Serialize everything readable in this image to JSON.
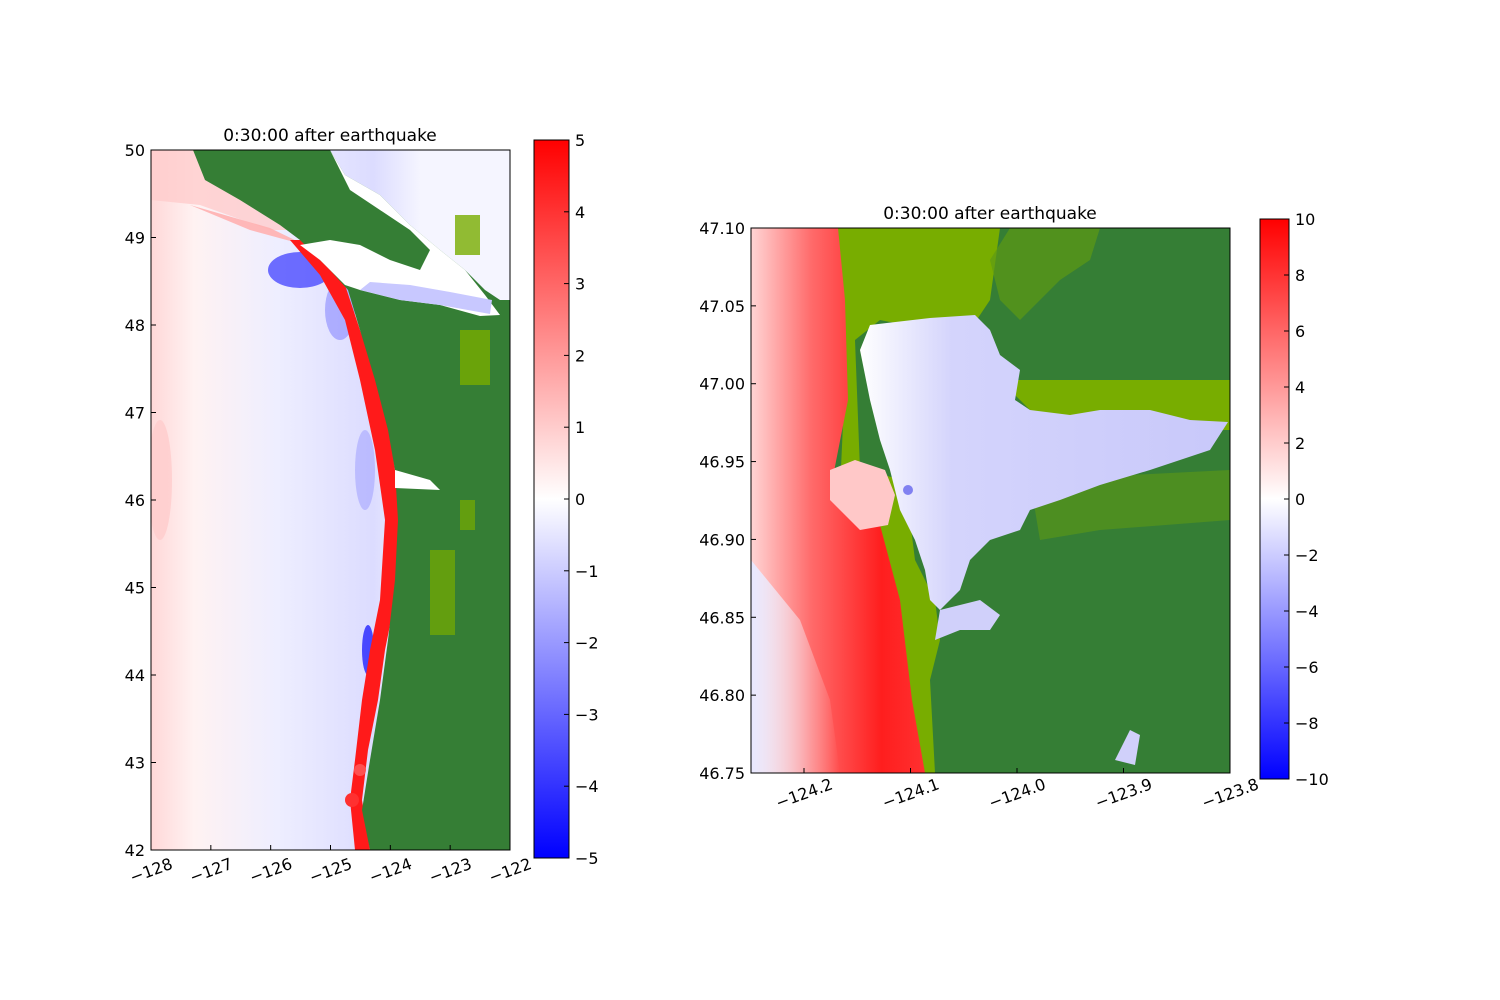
{
  "colors": {
    "ocean_positive": "#ff0000",
    "ocean_zero": "#ffffff",
    "ocean_negative": "#0000ff",
    "land_dark": "#357e35",
    "land_light": "#78ad00"
  },
  "panels": [
    {
      "title": "0:30:00 after earthquake",
      "xticks": [
        "−128",
        "−127",
        "−126",
        "−125",
        "−124",
        "−123",
        "−122"
      ],
      "yticks": [
        "42",
        "43",
        "44",
        "45",
        "46",
        "47",
        "48",
        "49",
        "50"
      ],
      "colorbar": {
        "ticks": [
          "−5",
          "−4",
          "−3",
          "−2",
          "−1",
          "0",
          "1",
          "2",
          "3",
          "4",
          "5"
        ],
        "range": [
          -5,
          5
        ]
      },
      "extent": {
        "lon": [
          -128,
          -122
        ],
        "lat": [
          42,
          50
        ]
      }
    },
    {
      "title": "0:30:00 after earthquake",
      "xticks": [
        "−124.2",
        "−124.1",
        "−124.0",
        "−123.9",
        "−123.8"
      ],
      "yticks": [
        "46.75",
        "46.80",
        "46.85",
        "46.90",
        "46.95",
        "47.00",
        "47.05",
        "47.10"
      ],
      "colorbar": {
        "ticks": [
          "−10",
          "−8",
          "−6",
          "−4",
          "−2",
          "0",
          "2",
          "4",
          "6",
          "8",
          "10"
        ],
        "range": [
          -10,
          10
        ]
      },
      "extent": {
        "lon": [
          -124.25,
          -123.8
        ],
        "lat": [
          46.75,
          47.1
        ]
      }
    }
  ]
}
